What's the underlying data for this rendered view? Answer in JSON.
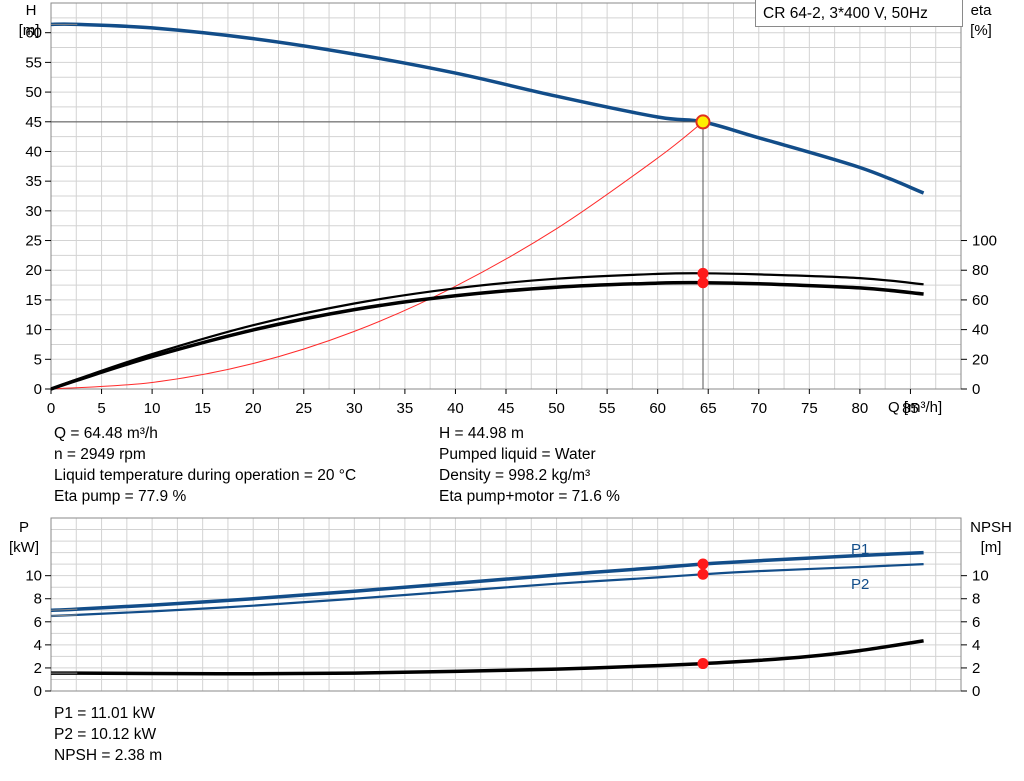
{
  "title": "CR 64-2, 3*400 V, 50Hz",
  "info_top": {
    "left": [
      "Q = 64.48 m³/h",
      "n = 2949 rpm",
      "Liquid temperature during operation = 20 °C",
      "Eta pump = 77.9 %"
    ],
    "right": [
      "H = 44.98 m",
      "Pumped liquid = Water",
      "Density = 998.2 kg/m³",
      "Eta pump+motor = 71.6 %"
    ]
  },
  "info_bottom": [
    "P1 = 11.01 kW",
    "P2 = 10.12 kW",
    "NPSH = 2.38 m"
  ],
  "colors": {
    "pump_curve": "#124d89",
    "efficiency": "#000000",
    "system_curve": "#ff2a2a",
    "marker": "#ff1a1a",
    "duty_point_fill": "#ffee00",
    "grid": "#d3d3d3"
  },
  "chart_data": [
    {
      "type": "line",
      "title": "",
      "x_label": "Q [m³/h]",
      "xlim": [
        0,
        90
      ],
      "x_ticks": [
        0,
        5,
        10,
        15,
        20,
        25,
        30,
        35,
        40,
        45,
        50,
        55,
        60,
        65,
        70,
        75,
        80,
        85
      ],
      "y_left": {
        "label_top": "H",
        "label_bottom": "[m]",
        "lim": [
          0,
          65
        ],
        "ticks": [
          0,
          5,
          10,
          15,
          20,
          25,
          30,
          35,
          40,
          45,
          50,
          55,
          60
        ]
      },
      "y_right": {
        "label_top": "eta",
        "label_bottom": "[%]",
        "lim": [
          0,
          260
        ],
        "ticks": [
          0,
          20,
          40,
          60,
          80,
          100
        ]
      },
      "grid": true,
      "series": [
        {
          "axis": "left",
          "style": "pump",
          "x": [
            0,
            2.6,
            10,
            20,
            30,
            40,
            50,
            60,
            64.48,
            70,
            80,
            86.3
          ],
          "y": [
            61.4,
            61.4,
            60.8,
            59.0,
            56.4,
            53.2,
            49.3,
            45.8,
            44.98,
            42.3,
            37.3,
            33.0
          ]
        },
        {
          "axis": "left",
          "style": "system",
          "x": [
            0,
            10,
            20,
            30,
            40,
            50,
            60,
            64.48
          ],
          "y": [
            0,
            1.1,
            4.3,
            9.7,
            17.3,
            27.0,
            38.9,
            44.98
          ]
        },
        {
          "axis": "left",
          "style": "guide",
          "x": [
            0,
            64.48,
            64.48
          ],
          "y": [
            44.98,
            44.98,
            0
          ]
        },
        {
          "axis": "right",
          "style": "eta_thin",
          "x": [
            0,
            2.6,
            10,
            20,
            30,
            40,
            50,
            60,
            64.48,
            70,
            80,
            86.3
          ],
          "y": [
            0,
            6.6,
            23.5,
            43.0,
            57.6,
            67.8,
            74.3,
            77.5,
            77.9,
            77.2,
            74.7,
            70.5
          ]
        },
        {
          "axis": "right",
          "style": "eta_thick",
          "x": [
            0,
            2.6,
            10,
            20,
            30,
            40,
            50,
            60,
            64.48,
            70,
            80,
            86.3
          ],
          "y": [
            0,
            6.0,
            21.8,
            39.8,
            53.5,
            62.8,
            68.6,
            71.3,
            71.6,
            70.9,
            68.1,
            64.0
          ]
        }
      ],
      "markers": [
        {
          "axis": "left",
          "x": 64.48,
          "y": 44.98,
          "style": "duty"
        },
        {
          "axis": "right",
          "x": 64.48,
          "y": 77.9,
          "style": "red"
        },
        {
          "axis": "right",
          "x": 64.48,
          "y": 71.6,
          "style": "red"
        }
      ]
    },
    {
      "type": "line",
      "title": "",
      "xlim": [
        0,
        90
      ],
      "y_left": {
        "label_top": "P",
        "label_bottom": "[kW]",
        "lim": [
          0,
          15
        ],
        "ticks": [
          0,
          2,
          4,
          6,
          8,
          10
        ]
      },
      "y_right": {
        "label_top": "NPSH",
        "label_bottom": "[m]",
        "lim": [
          0,
          15
        ],
        "ticks": [
          0,
          2,
          4,
          6,
          8,
          10
        ]
      },
      "grid": true,
      "series": [
        {
          "name": "P1",
          "axis": "left",
          "style": "p1",
          "x": [
            0,
            2.6,
            10,
            20,
            30,
            40,
            50,
            60,
            64.48,
            70,
            80,
            86.3
          ],
          "y": [
            7.0,
            7.1,
            7.45,
            8.0,
            8.65,
            9.35,
            10.05,
            10.7,
            11.01,
            11.3,
            11.75,
            12.0
          ]
        },
        {
          "name": "P2",
          "axis": "left",
          "style": "p2",
          "x": [
            0,
            2.6,
            10,
            20,
            30,
            40,
            50,
            60,
            64.48,
            70,
            80,
            86.3
          ],
          "y": [
            6.5,
            6.6,
            6.9,
            7.4,
            8.0,
            8.65,
            9.3,
            9.85,
            10.12,
            10.4,
            10.75,
            11.0
          ]
        },
        {
          "axis": "right",
          "style": "npsh",
          "x": [
            0,
            2.6,
            10,
            20,
            30,
            40,
            50,
            60,
            64.48,
            70,
            75,
            80,
            86.3
          ],
          "y": [
            1.55,
            1.55,
            1.52,
            1.5,
            1.55,
            1.7,
            1.9,
            2.2,
            2.38,
            2.65,
            3.0,
            3.5,
            4.35
          ]
        }
      ],
      "markers": [
        {
          "axis": "left",
          "x": 64.48,
          "y": 11.01,
          "style": "red"
        },
        {
          "axis": "left",
          "x": 64.48,
          "y": 10.12,
          "style": "red"
        },
        {
          "axis": "right",
          "x": 64.48,
          "y": 2.38,
          "style": "red"
        }
      ]
    }
  ]
}
